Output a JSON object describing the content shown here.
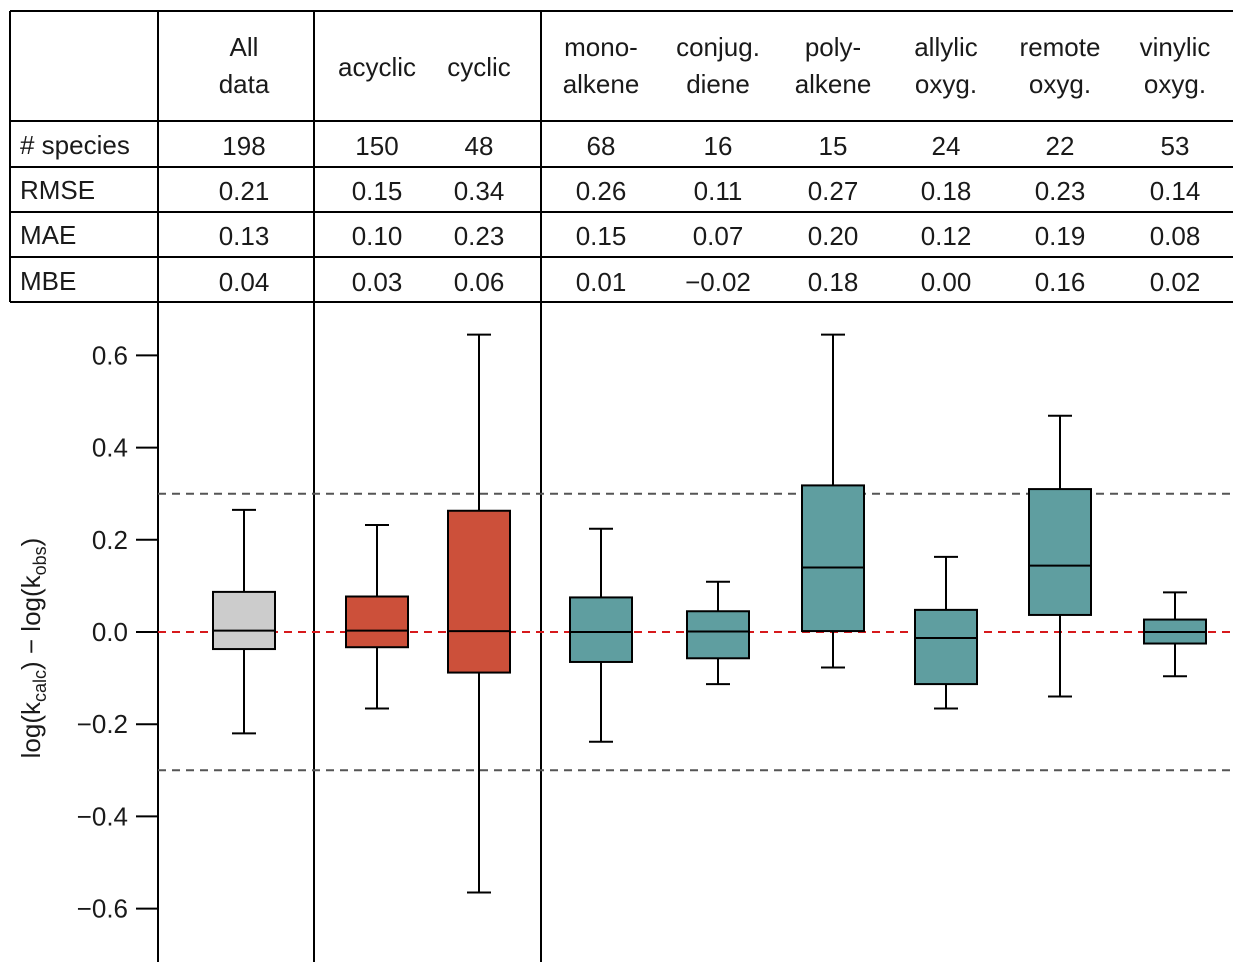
{
  "chart_data": {
    "type": "boxplot",
    "groups": [
      {
        "key": "all",
        "header": [
          "All",
          "data"
        ],
        "species": "198",
        "rmse": "0.21",
        "mae": "0.13",
        "mbe": "0.04",
        "color": "#cccccc",
        "box": {
          "whisker_low": -0.22,
          "q1": -0.037,
          "median": 0.003,
          "q3": 0.087,
          "whisker_high": 0.265
        }
      },
      {
        "key": "acyclic",
        "header": [
          "acyclic"
        ],
        "species": "150",
        "rmse": "0.15",
        "mae": "0.10",
        "mbe": "0.03",
        "color": "#cc503a",
        "box": {
          "whisker_low": -0.166,
          "q1": -0.033,
          "median": 0.003,
          "q3": 0.077,
          "whisker_high": 0.232
        }
      },
      {
        "key": "cyclic",
        "header": [
          "cyclic"
        ],
        "species": "48",
        "rmse": "0.34",
        "mae": "0.23",
        "mbe": "0.06",
        "color": "#cc503a",
        "box": {
          "whisker_low": -0.565,
          "q1": -0.088,
          "median": 0.002,
          "q3": 0.263,
          "whisker_high": 0.645
        }
      },
      {
        "key": "mono",
        "header": [
          "mono-",
          "alkene"
        ],
        "species": "68",
        "rmse": "0.26",
        "mae": "0.15",
        "mbe": "0.01",
        "color": "#5f9ea0",
        "box": {
          "whisker_low": -0.238,
          "q1": -0.065,
          "median": 0.0,
          "q3": 0.075,
          "whisker_high": 0.224
        }
      },
      {
        "key": "conjug",
        "header": [
          "conjug.",
          "diene"
        ],
        "species": "16",
        "rmse": "0.11",
        "mae": "0.07",
        "mbe": "−0.02",
        "color": "#5f9ea0",
        "box": {
          "whisker_low": -0.113,
          "q1": -0.057,
          "median": 0.001,
          "q3": 0.045,
          "whisker_high": 0.109
        }
      },
      {
        "key": "poly",
        "header": [
          "poly-",
          "alkene"
        ],
        "species": "15",
        "rmse": "0.27",
        "mae": "0.20",
        "mbe": "0.18",
        "color": "#5f9ea0",
        "box": {
          "whisker_low": -0.077,
          "q1": 0.002,
          "median": 0.14,
          "q3": 0.318,
          "whisker_high": 0.645
        }
      },
      {
        "key": "allylic",
        "header": [
          "allylic",
          "oxyg."
        ],
        "species": "24",
        "rmse": "0.18",
        "mae": "0.12",
        "mbe": "0.00",
        "color": "#5f9ea0",
        "box": {
          "whisker_low": -0.166,
          "q1": -0.113,
          "median": -0.013,
          "q3": 0.048,
          "whisker_high": 0.163
        }
      },
      {
        "key": "remote",
        "header": [
          "remote",
          "oxyg."
        ],
        "species": "22",
        "rmse": "0.23",
        "mae": "0.19",
        "mbe": "0.16",
        "color": "#5f9ea0",
        "box": {
          "whisker_low": -0.14,
          "q1": 0.037,
          "median": 0.144,
          "q3": 0.31,
          "whisker_high": 0.469
        }
      },
      {
        "key": "vinylic",
        "header": [
          "vinylic",
          "oxyg."
        ],
        "species": "53",
        "rmse": "0.14",
        "mae": "0.08",
        "mbe": "0.02",
        "color": "#5f9ea0",
        "box": {
          "whisker_low": -0.096,
          "q1": -0.025,
          "median": 0.0,
          "q3": 0.027,
          "whisker_high": 0.086
        }
      }
    ],
    "row_labels": {
      "species": "# species",
      "rmse": "RMSE",
      "mae": "MAE",
      "mbe": "MBE"
    },
    "ylabel": {
      "prefix": "log(k",
      "sub1": "calc",
      "mid": ") − log(k",
      "sub2": "obs",
      "suffix": ")"
    },
    "ylim": [
      -0.7,
      0.7
    ],
    "yticks": [
      0.6,
      0.4,
      0.2,
      0.0,
      -0.2,
      -0.4,
      -0.6
    ],
    "ytick_labels": [
      "0.6",
      "0.4",
      "0.2",
      "0.0",
      "−0.2",
      "−0.4",
      "−0.6"
    ],
    "reference_lines": [
      {
        "y": 0.0,
        "color": "#d7191c",
        "style": "dashed"
      },
      {
        "y": 0.3,
        "color": "#555555",
        "style": "dashed"
      },
      {
        "y": -0.3,
        "color": "#555555",
        "style": "dashed"
      }
    ]
  }
}
